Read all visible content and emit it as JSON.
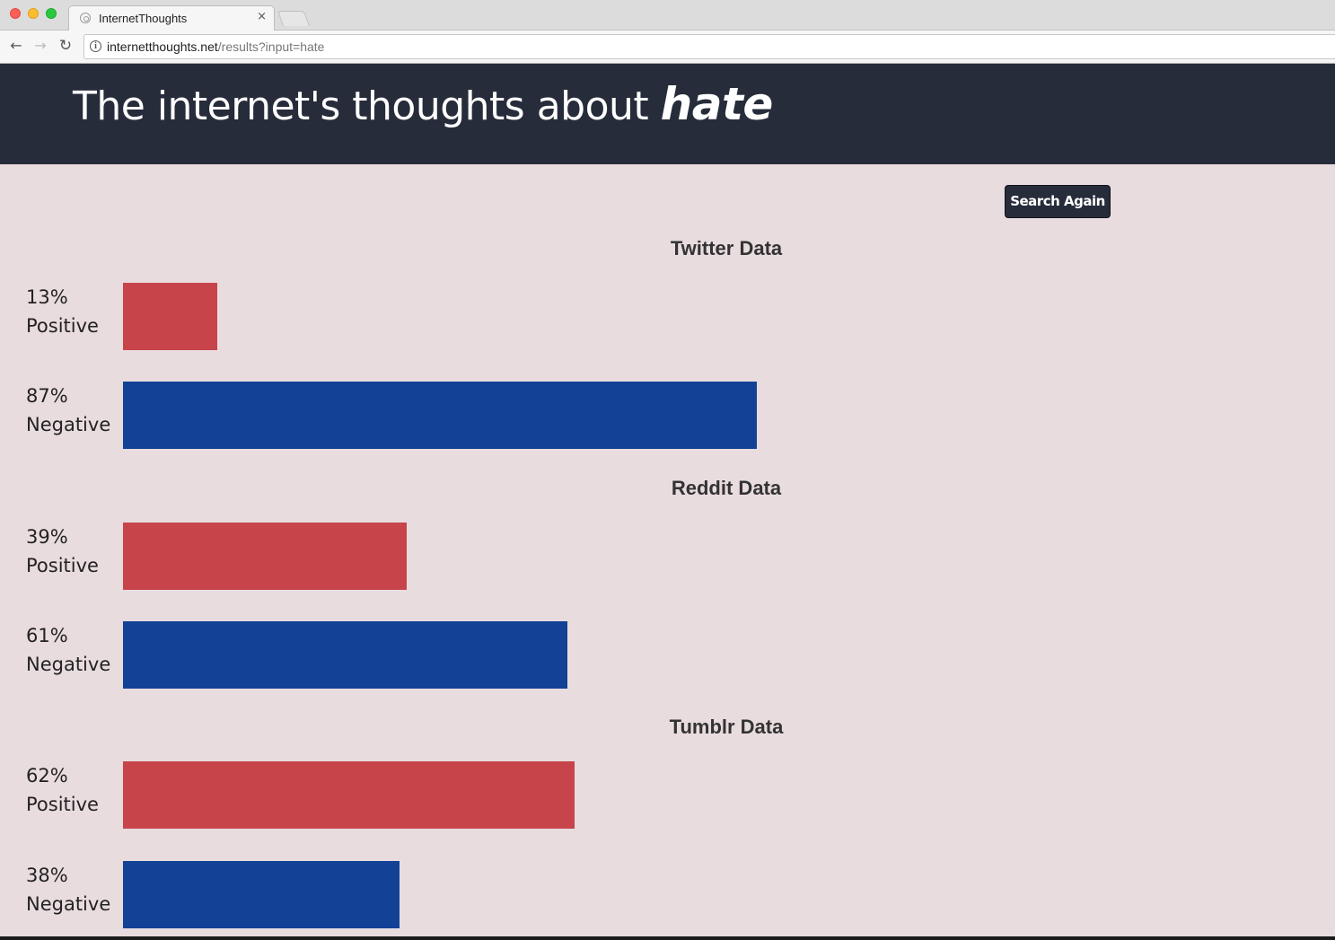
{
  "browser": {
    "tab_title": "InternetThoughts",
    "tab_close": "×",
    "url_host": "internetthoughts.net",
    "url_path": "/results?input=hate",
    "back_glyph": "←",
    "forward_glyph": "→",
    "reload_glyph": "↻",
    "info_glyph": "i"
  },
  "header": {
    "title_prefix": "The internet's thoughts about ",
    "keyword": "hate"
  },
  "search_again_label": "Search Again",
  "colors": {
    "positive": "#c8444b",
    "negative": "#124196",
    "header_bg": "#262c3a",
    "page_bg": "#e9dcdf"
  },
  "sections": [
    {
      "title": "Twitter Data",
      "bars": [
        {
          "percent_label": "13%",
          "sentiment": "Positive",
          "value": 13
        },
        {
          "percent_label": "87%",
          "sentiment": "Negative",
          "value": 87
        }
      ]
    },
    {
      "title": "Reddit Data",
      "bars": [
        {
          "percent_label": "39%",
          "sentiment": "Positive",
          "value": 39
        },
        {
          "percent_label": "61%",
          "sentiment": "Negative",
          "value": 61
        }
      ]
    },
    {
      "title": "Tumblr Data",
      "bars": [
        {
          "percent_label": "62%",
          "sentiment": "Positive",
          "value": 62
        },
        {
          "percent_label": "38%",
          "sentiment": "Negative",
          "value": 38
        }
      ]
    }
  ]
}
